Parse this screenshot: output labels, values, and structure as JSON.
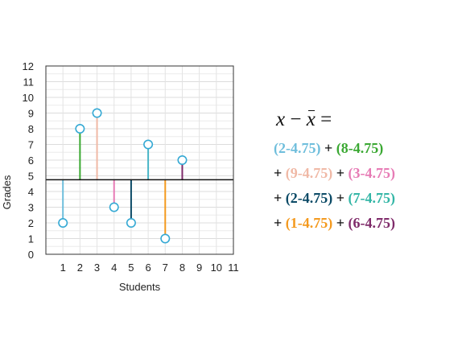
{
  "chart_data": {
    "type": "scatter",
    "xlabel": "Students",
    "ylabel": "Grades",
    "xlim": [
      0,
      11
    ],
    "ylim": [
      0,
      12
    ],
    "x_ticks": [
      1,
      2,
      3,
      4,
      5,
      6,
      7,
      8,
      9,
      10,
      11
    ],
    "y_ticks": [
      0,
      1,
      2,
      3,
      4,
      5,
      6,
      7,
      8,
      9,
      10,
      11,
      12
    ],
    "grid": true,
    "mean_line": 4.75,
    "points": [
      {
        "x": 1,
        "y": 2,
        "color": "#6fbedc"
      },
      {
        "x": 2,
        "y": 8,
        "color": "#3aa832"
      },
      {
        "x": 3,
        "y": 9,
        "color": "#f0b9a6"
      },
      {
        "x": 4,
        "y": 3,
        "color": "#e77bb5"
      },
      {
        "x": 5,
        "y": 2,
        "color": "#0b4a66"
      },
      {
        "x": 6,
        "y": 7,
        "color": "#49b5c7"
      },
      {
        "x": 7,
        "y": 1,
        "color": "#f49a1f"
      },
      {
        "x": 8,
        "y": 6,
        "color": "#7f2b6a"
      }
    ],
    "marker_color": "#35a9d4"
  },
  "equation": {
    "lhs": "x",
    "minus": "−",
    "xbar": "x",
    "equals": "=",
    "lines": [
      [
        {
          "text": "(2-4.75)",
          "color": "#6fbedc"
        },
        {
          "text": " + ",
          "color": "#111111"
        },
        {
          "text": "(8-4.75)",
          "color": "#3aa832"
        }
      ],
      [
        {
          "text": "+ ",
          "color": "#111111"
        },
        {
          "text": "(9-4.75)",
          "color": "#f0b9a6"
        },
        {
          "text": " + ",
          "color": "#111111"
        },
        {
          "text": "(3-4.75)",
          "color": "#e77bb5"
        }
      ],
      [
        {
          "text": "+ ",
          "color": "#111111"
        },
        {
          "text": "(2-4.75)",
          "color": "#0b4a66"
        },
        {
          "text": " + ",
          "color": "#111111"
        },
        {
          "text": "(7-4.75)",
          "color": "#33b6a6"
        }
      ],
      [
        {
          "text": "+ ",
          "color": "#111111"
        },
        {
          "text": "(1-4.75)",
          "color": "#f49a1f"
        },
        {
          "text": " + ",
          "color": "#111111"
        },
        {
          "text": "(6-4.75)",
          "color": "#7f2b6a"
        }
      ]
    ]
  }
}
